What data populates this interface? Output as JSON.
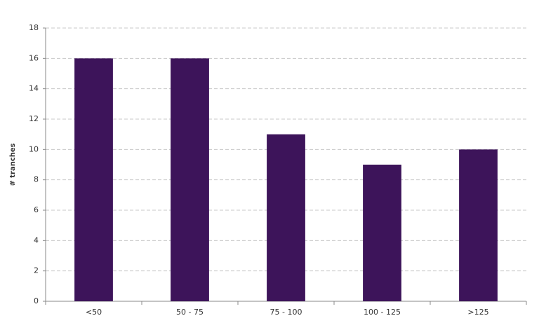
{
  "chart_data": {
    "type": "bar",
    "y_label": "# tranches",
    "categories": [
      "<50",
      "50 - 75",
      "75 - 100",
      "100 - 125",
      ">125"
    ],
    "values": [
      16,
      16,
      11,
      9,
      10
    ],
    "color": "#3d145a",
    "ylim": [
      0,
      18
    ],
    "yticks": [
      0,
      2,
      4,
      6,
      8,
      10,
      12,
      14,
      16,
      18
    ],
    "grid": true
  }
}
